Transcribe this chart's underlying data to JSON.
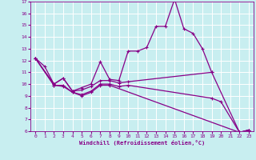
{
  "xlabel": "Windchill (Refroidissement éolien,°C)",
  "xlim": [
    -0.5,
    23.5
  ],
  "ylim": [
    6,
    17
  ],
  "yticks": [
    6,
    7,
    8,
    9,
    10,
    11,
    12,
    13,
    14,
    15,
    16,
    17
  ],
  "xticks": [
    0,
    1,
    2,
    3,
    4,
    5,
    6,
    7,
    8,
    9,
    10,
    11,
    12,
    13,
    14,
    15,
    16,
    17,
    18,
    19,
    20,
    21,
    22,
    23
  ],
  "background_color": "#c8eef0",
  "line_color": "#880088",
  "grid_color": "#aadddd",
  "line1_x": [
    0,
    1,
    2,
    3,
    4,
    5,
    6,
    7,
    8,
    9,
    10,
    11,
    12,
    13,
    14,
    15,
    16,
    17,
    18,
    19
  ],
  "line1_y": [
    12.2,
    11.5,
    10.0,
    10.5,
    9.4,
    9.7,
    10.0,
    11.9,
    10.4,
    10.3,
    12.8,
    12.8,
    13.1,
    14.9,
    14.9,
    17.2,
    14.7,
    14.3,
    13.0,
    11.0
  ],
  "line2_x": [
    0,
    2,
    3,
    4,
    5,
    6,
    7,
    8,
    9,
    10,
    19,
    22,
    23
  ],
  "line2_y": [
    12.2,
    10.0,
    10.5,
    9.4,
    9.5,
    9.8,
    10.3,
    10.3,
    10.1,
    10.2,
    11.0,
    5.9,
    6.1
  ],
  "line3_x": [
    0,
    2,
    3,
    4,
    5,
    6,
    7,
    8,
    9,
    10,
    19,
    20,
    22,
    23
  ],
  "line3_y": [
    12.2,
    9.9,
    9.9,
    9.3,
    9.1,
    9.4,
    10.0,
    10.0,
    9.8,
    9.9,
    8.8,
    8.5,
    5.9,
    6.1
  ],
  "line4_x": [
    0,
    2,
    3,
    4,
    5,
    6,
    7,
    8,
    22,
    23
  ],
  "line4_y": [
    12.2,
    9.9,
    9.8,
    9.3,
    9.0,
    9.3,
    9.9,
    9.9,
    5.9,
    6.1
  ]
}
